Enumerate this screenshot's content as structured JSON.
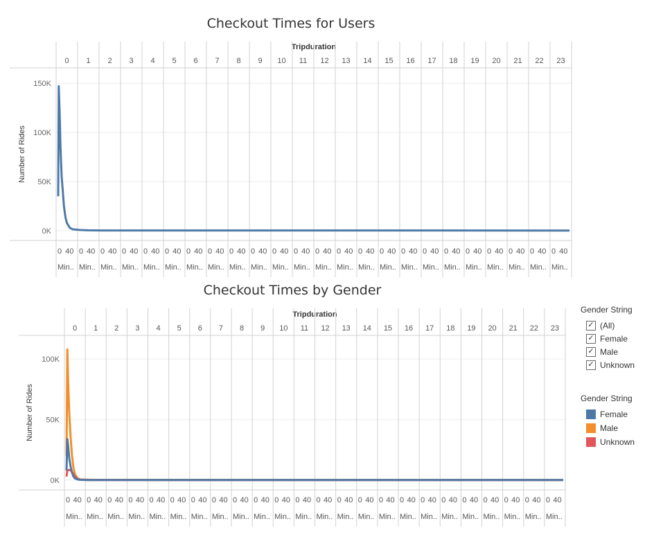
{
  "chart_data": [
    {
      "type": "line",
      "title": "Checkout Times for Users",
      "header_label": "Tripduration",
      "ylabel": "Number of Rides",
      "y_ticks": [
        "150K",
        "100K",
        "50K",
        "0K"
      ],
      "ylim": [
        0,
        160000
      ],
      "panels": [
        "0",
        "1",
        "2",
        "3",
        "4",
        "5",
        "6",
        "7",
        "8",
        "9",
        "10",
        "11",
        "12",
        "13",
        "14",
        "15",
        "16",
        "17",
        "18",
        "19",
        "20",
        "21",
        "22",
        "23"
      ],
      "x_sub_ticks": [
        "0",
        "40"
      ],
      "x_unit_label": "Min..",
      "series": [
        {
          "name": "All",
          "color": "#4e79a7",
          "x_minutes": [
            0,
            2,
            5,
            8,
            12,
            16,
            20,
            25,
            30,
            40,
            50,
            60,
            90,
            120,
            1440
          ],
          "values": [
            35000,
            147000,
            120000,
            85000,
            55000,
            40000,
            25000,
            14000,
            8000,
            3000,
            1500,
            800,
            400,
            300,
            200
          ]
        }
      ]
    },
    {
      "type": "line",
      "title": "Checkout Times by Gender",
      "header_label": "Tripduration",
      "ylabel": "Number of Rides",
      "y_ticks": [
        "100K",
        "50K",
        "0K"
      ],
      "ylim": [
        0,
        115000
      ],
      "panels": [
        "0",
        "1",
        "2",
        "3",
        "4",
        "5",
        "6",
        "7",
        "8",
        "9",
        "10",
        "11",
        "12",
        "13",
        "14",
        "15",
        "16",
        "17",
        "18",
        "19",
        "20",
        "21",
        "22",
        "23"
      ],
      "x_sub_ticks": [
        "0",
        "40"
      ],
      "x_unit_label": "Min..",
      "series": [
        {
          "name": "Male",
          "color": "#f28e2b",
          "x_minutes": [
            0,
            3,
            6,
            10,
            15,
            20,
            25,
            30,
            40,
            50,
            60,
            90,
            1440
          ],
          "values": [
            20000,
            108000,
            80000,
            55000,
            35000,
            20000,
            10000,
            5000,
            1500,
            600,
            400,
            300,
            200
          ]
        },
        {
          "name": "Unknown",
          "color": "#e15759",
          "x_minutes": [
            0,
            3,
            8,
            15,
            22,
            30,
            40,
            50,
            60,
            90,
            1440
          ],
          "values": [
            3000,
            8000,
            8500,
            8000,
            6000,
            3000,
            1000,
            400,
            200,
            100,
            50
          ]
        },
        {
          "name": "Female",
          "color": "#4e79a7",
          "x_minutes": [
            0,
            3,
            6,
            10,
            15,
            20,
            25,
            30,
            40,
            50,
            60,
            90,
            1440
          ],
          "values": [
            8000,
            34000,
            28000,
            18000,
            11000,
            6000,
            3000,
            1500,
            600,
            300,
            200,
            150,
            100
          ]
        }
      ]
    }
  ],
  "legend_filter": {
    "title": "Gender String",
    "items": [
      "(All)",
      "Female",
      "Male",
      "Unknown"
    ],
    "check_glyph": "✓"
  },
  "legend_color": {
    "title": "Gender String",
    "items": [
      {
        "label": "Female",
        "color": "#4e79a7"
      },
      {
        "label": "Male",
        "color": "#f28e2b"
      },
      {
        "label": "Unknown",
        "color": "#e15759"
      }
    ]
  }
}
